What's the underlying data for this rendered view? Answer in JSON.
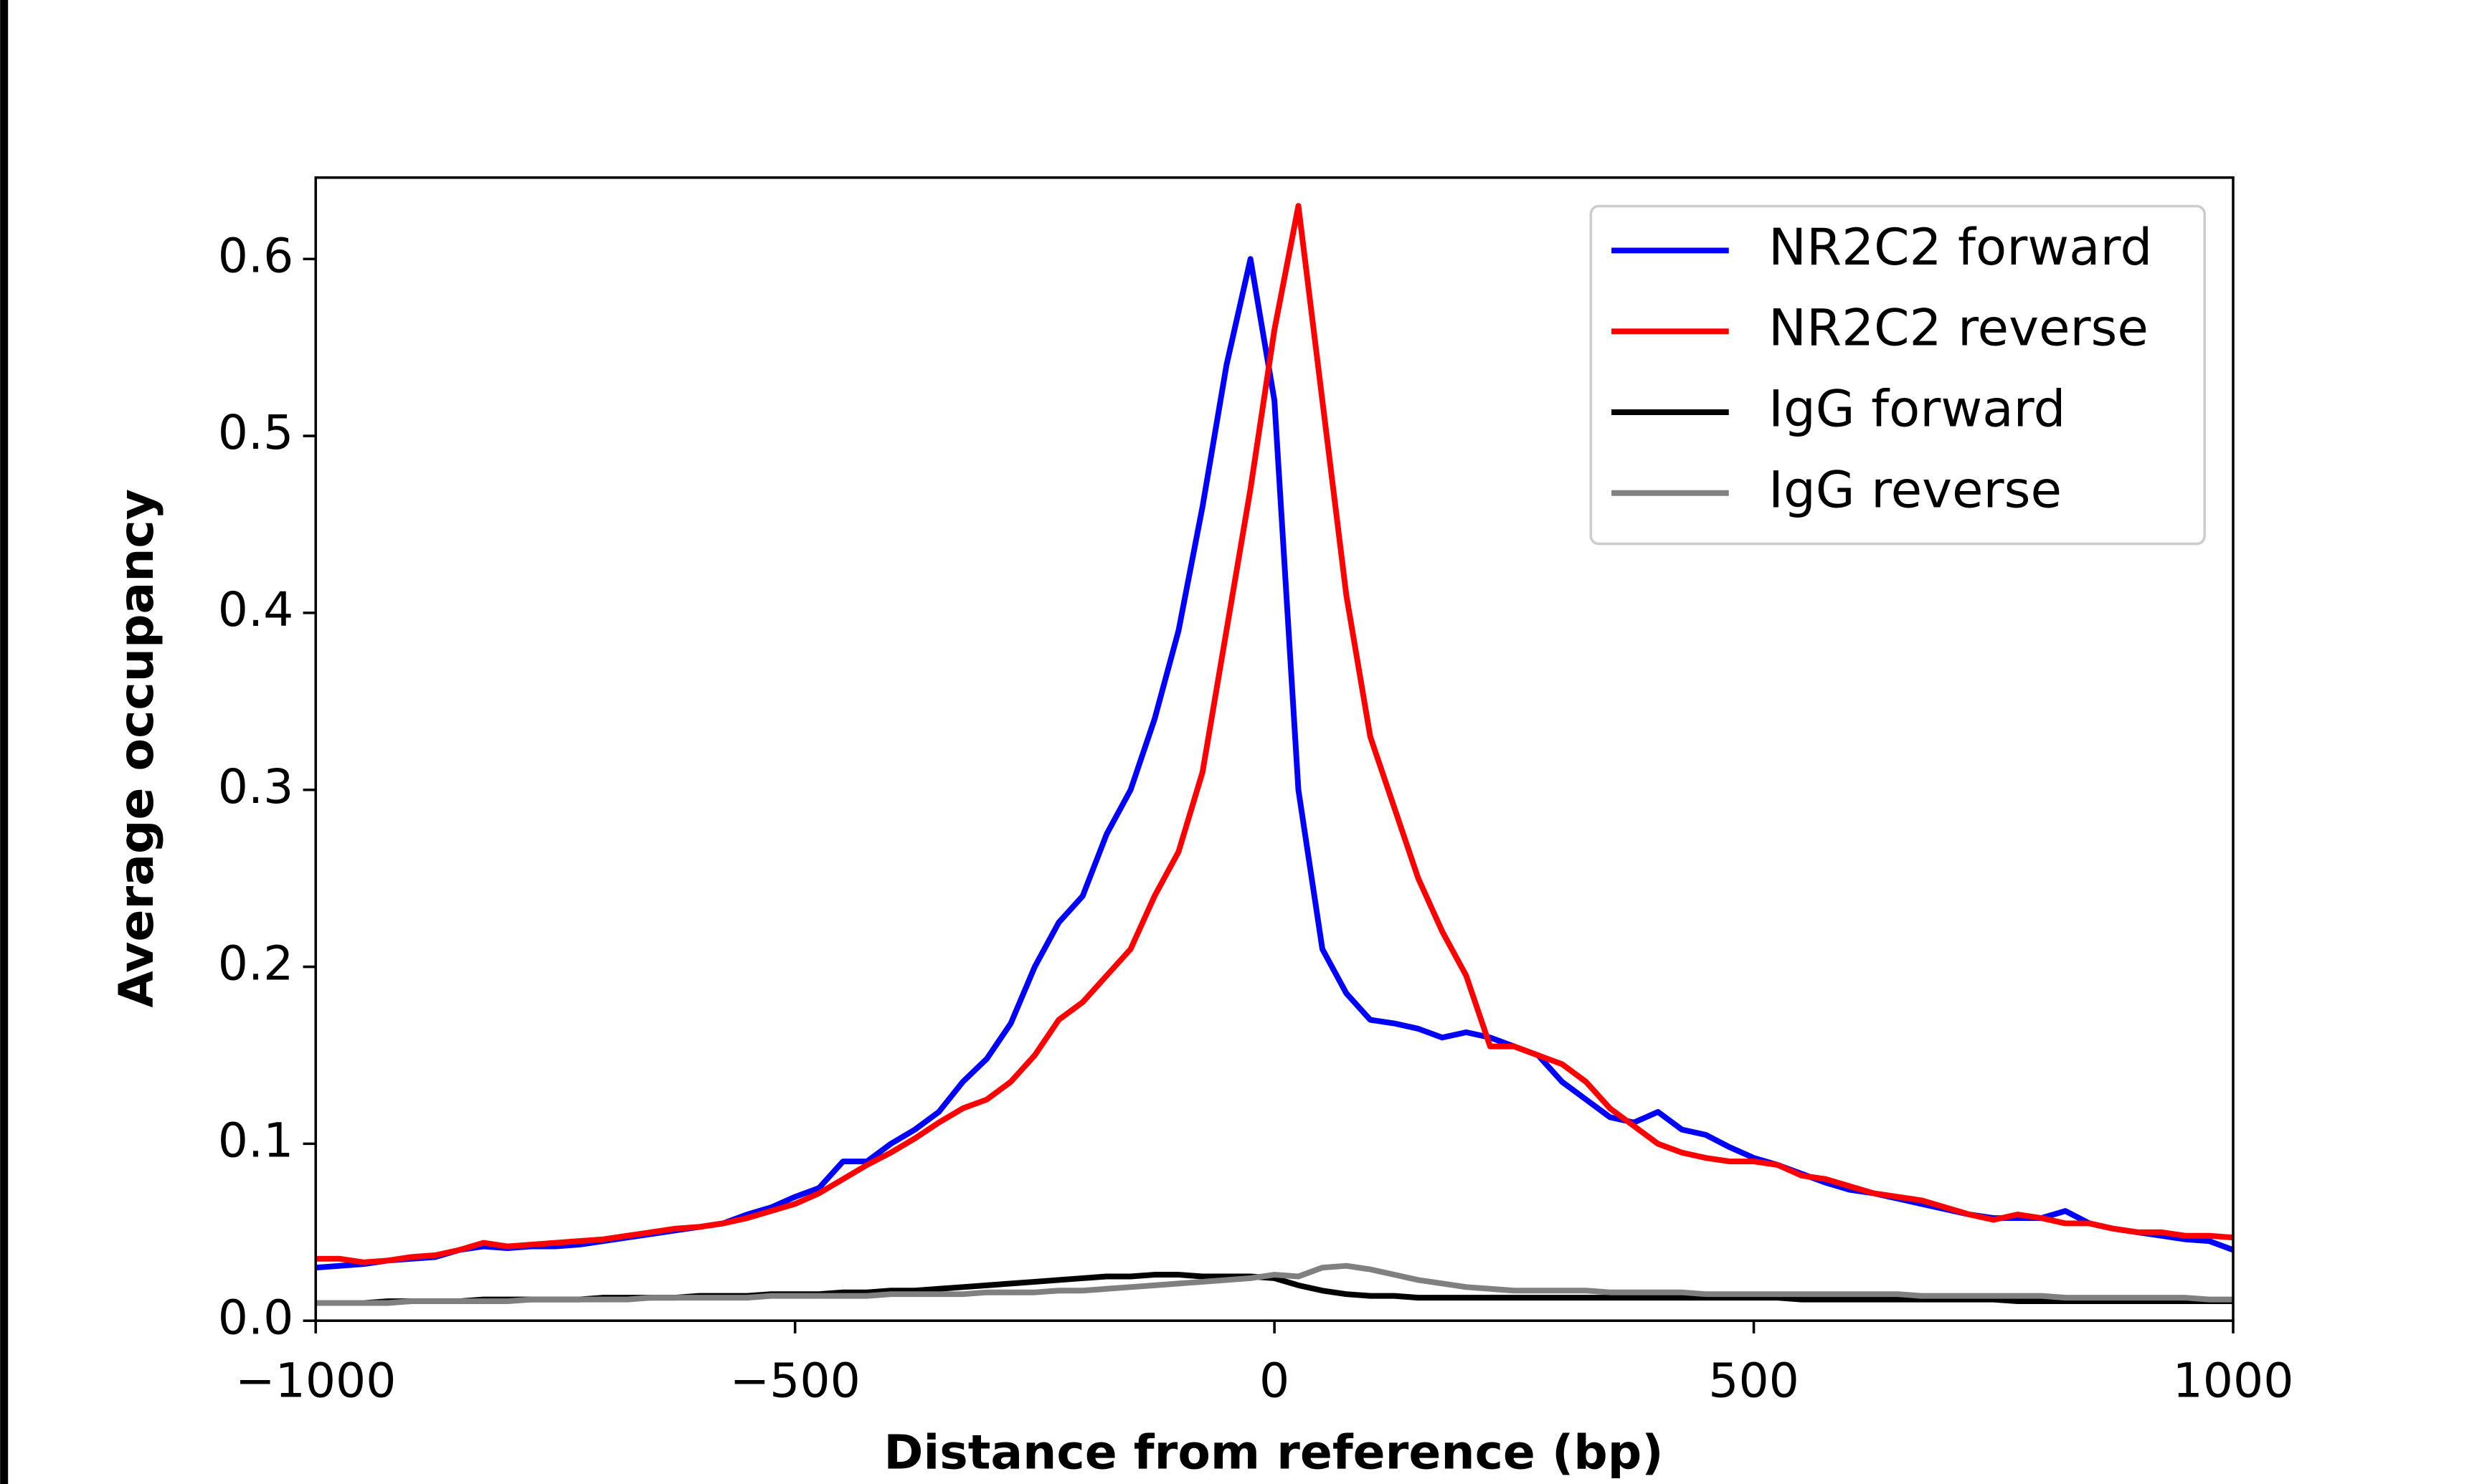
{
  "chart_data": {
    "type": "line",
    "xlabel": "Distance from reference (bp)",
    "ylabel": "Average occupancy",
    "x": [
      -1000,
      -975,
      -950,
      -925,
      -900,
      -875,
      -850,
      -825,
      -800,
      -775,
      -750,
      -725,
      -700,
      -675,
      -650,
      -625,
      -600,
      -575,
      -550,
      -525,
      -500,
      -475,
      -450,
      -425,
      -400,
      -375,
      -350,
      -325,
      -300,
      -275,
      -250,
      -225,
      -200,
      -175,
      -150,
      -125,
      -100,
      -75,
      -50,
      -25,
      0,
      25,
      50,
      75,
      100,
      125,
      150,
      175,
      200,
      225,
      250,
      275,
      300,
      325,
      350,
      375,
      400,
      425,
      450,
      475,
      500,
      525,
      550,
      575,
      600,
      625,
      650,
      675,
      700,
      725,
      750,
      775,
      800,
      825,
      850,
      875,
      900,
      925,
      950,
      975,
      1000
    ],
    "series": [
      {
        "name": "NR2C2 forward",
        "color": "#0000ff",
        "values": [
          0.03,
          0.031,
          0.032,
          0.034,
          0.035,
          0.036,
          0.04,
          0.042,
          0.041,
          0.042,
          0.042,
          0.043,
          0.045,
          0.047,
          0.049,
          0.051,
          0.053,
          0.055,
          0.06,
          0.064,
          0.07,
          0.075,
          0.09,
          0.09,
          0.1,
          0.108,
          0.118,
          0.135,
          0.148,
          0.168,
          0.2,
          0.225,
          0.24,
          0.275,
          0.3,
          0.34,
          0.39,
          0.46,
          0.54,
          0.6,
          0.52,
          0.3,
          0.21,
          0.185,
          0.17,
          0.168,
          0.165,
          0.16,
          0.163,
          0.16,
          0.155,
          0.15,
          0.135,
          0.125,
          0.115,
          0.112,
          0.118,
          0.108,
          0.105,
          0.098,
          0.092,
          0.088,
          0.083,
          0.078,
          0.074,
          0.072,
          0.069,
          0.066,
          0.063,
          0.06,
          0.058,
          0.058,
          0.058,
          0.062,
          0.055,
          0.052,
          0.05,
          0.048,
          0.046,
          0.045,
          0.04
        ]
      },
      {
        "name": "NR2C2 reverse",
        "color": "#ff0000",
        "values": [
          0.035,
          0.035,
          0.033,
          0.034,
          0.036,
          0.037,
          0.04,
          0.044,
          0.042,
          0.043,
          0.044,
          0.045,
          0.046,
          0.048,
          0.05,
          0.052,
          0.053,
          0.055,
          0.058,
          0.062,
          0.066,
          0.072,
          0.08,
          0.088,
          0.095,
          0.103,
          0.112,
          0.12,
          0.125,
          0.135,
          0.15,
          0.17,
          0.18,
          0.195,
          0.21,
          0.24,
          0.265,
          0.31,
          0.39,
          0.47,
          0.56,
          0.63,
          0.52,
          0.41,
          0.33,
          0.29,
          0.25,
          0.22,
          0.195,
          0.155,
          0.155,
          0.15,
          0.145,
          0.135,
          0.12,
          0.11,
          0.1,
          0.095,
          0.092,
          0.09,
          0.09,
          0.088,
          0.082,
          0.08,
          0.076,
          0.072,
          0.07,
          0.068,
          0.064,
          0.06,
          0.057,
          0.06,
          0.058,
          0.055,
          0.055,
          0.052,
          0.05,
          0.05,
          0.048,
          0.048,
          0.047
        ]
      },
      {
        "name": "IgG forward",
        "color": "#000000",
        "values": [
          0.01,
          0.01,
          0.01,
          0.011,
          0.011,
          0.011,
          0.011,
          0.012,
          0.012,
          0.012,
          0.012,
          0.012,
          0.013,
          0.013,
          0.013,
          0.013,
          0.014,
          0.014,
          0.014,
          0.015,
          0.015,
          0.015,
          0.016,
          0.016,
          0.017,
          0.017,
          0.018,
          0.019,
          0.02,
          0.021,
          0.022,
          0.023,
          0.024,
          0.025,
          0.025,
          0.026,
          0.026,
          0.025,
          0.025,
          0.025,
          0.024,
          0.02,
          0.017,
          0.015,
          0.014,
          0.014,
          0.013,
          0.013,
          0.013,
          0.013,
          0.013,
          0.013,
          0.013,
          0.013,
          0.013,
          0.013,
          0.013,
          0.013,
          0.013,
          0.013,
          0.013,
          0.013,
          0.012,
          0.012,
          0.012,
          0.012,
          0.012,
          0.012,
          0.012,
          0.012,
          0.012,
          0.011,
          0.011,
          0.011,
          0.011,
          0.011,
          0.011,
          0.011,
          0.011,
          0.011,
          0.011
        ]
      },
      {
        "name": "IgG reverse",
        "color": "#808080",
        "values": [
          0.01,
          0.01,
          0.01,
          0.01,
          0.011,
          0.011,
          0.011,
          0.011,
          0.011,
          0.012,
          0.012,
          0.012,
          0.012,
          0.012,
          0.013,
          0.013,
          0.013,
          0.013,
          0.013,
          0.014,
          0.014,
          0.014,
          0.014,
          0.014,
          0.015,
          0.015,
          0.015,
          0.015,
          0.016,
          0.016,
          0.016,
          0.017,
          0.017,
          0.018,
          0.019,
          0.02,
          0.021,
          0.022,
          0.023,
          0.024,
          0.026,
          0.025,
          0.03,
          0.031,
          0.029,
          0.026,
          0.023,
          0.021,
          0.019,
          0.018,
          0.017,
          0.017,
          0.017,
          0.017,
          0.016,
          0.016,
          0.016,
          0.016,
          0.015,
          0.015,
          0.015,
          0.015,
          0.015,
          0.015,
          0.015,
          0.015,
          0.015,
          0.014,
          0.014,
          0.014,
          0.014,
          0.014,
          0.014,
          0.013,
          0.013,
          0.013,
          0.013,
          0.013,
          0.013,
          0.012,
          0.012
        ]
      }
    ],
    "xlim": [
      -1000,
      1000
    ],
    "xticks": [
      {
        "value": -1000,
        "label": "−1000"
      },
      {
        "value": -500,
        "label": "−500"
      },
      0,
      500,
      1000
    ],
    "ylim": [
      0,
      0.646
    ],
    "yticks": [
      0.0,
      0.1,
      0.2,
      0.3,
      0.4,
      0.5,
      0.6
    ],
    "legend": "upper right"
  }
}
